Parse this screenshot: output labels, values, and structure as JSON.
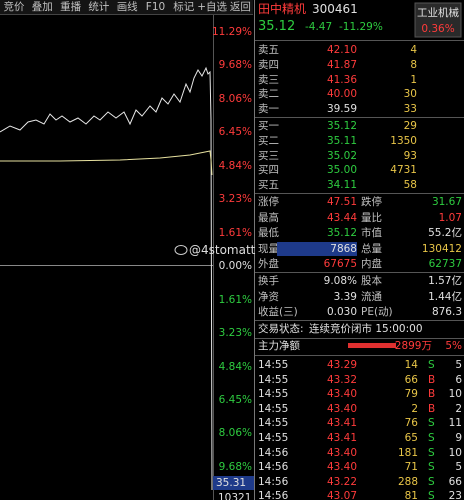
{
  "toolbar": [
    "竞价",
    "叠加",
    "重播",
    "统计",
    "画线",
    "F10",
    "标记",
    "+自选",
    "返回"
  ],
  "axis": {
    "labels": [
      {
        "text": "11.29%",
        "color": "#ff3b3b"
      },
      {
        "text": "9.68%",
        "color": "#ff3b3b"
      },
      {
        "text": "8.06%",
        "color": "#ff3b3b"
      },
      {
        "text": "6.45%",
        "color": "#ff3b3b"
      },
      {
        "text": "4.84%",
        "color": "#ff3b3b"
      },
      {
        "text": "3.23%",
        "color": "#ff3b3b"
      },
      {
        "text": "1.61%",
        "color": "#ff3b3b"
      },
      {
        "text": "0.00%",
        "color": "#e0e0e0"
      },
      {
        "text": "1.61%",
        "color": "#2ecc40"
      },
      {
        "text": "3.23%",
        "color": "#2ecc40"
      },
      {
        "text": "4.84%",
        "color": "#2ecc40"
      },
      {
        "text": "6.45%",
        "color": "#2ecc40"
      },
      {
        "text": "8.06%",
        "color": "#2ecc40"
      },
      {
        "text": "9.68%",
        "color": "#2ecc40"
      }
    ],
    "current": "35.31",
    "bottom": "10321"
  },
  "watermark": "@4stomatt",
  "quote": {
    "name": "田中精机",
    "code": "300461",
    "price": "35.12",
    "change": "-4.47",
    "pct": "-11.29%",
    "sector": "工业机械",
    "sector_pct": "0.36%"
  },
  "asks": [
    [
      "卖五",
      "42.10",
      "4"
    ],
    [
      "卖四",
      "41.87",
      "8"
    ],
    [
      "卖三",
      "41.36",
      "1"
    ],
    [
      "卖二",
      "40.00",
      "30"
    ],
    [
      "卖一",
      "39.59",
      "33"
    ]
  ],
  "bids": [
    [
      "买一",
      "35.12",
      "29"
    ],
    [
      "买二",
      "35.11",
      "1350"
    ],
    [
      "买三",
      "35.02",
      "93"
    ],
    [
      "买四",
      "35.00",
      "4731"
    ],
    [
      "买五",
      "34.11",
      "58"
    ]
  ],
  "stats": [
    [
      "涨停",
      "47.51",
      "跌停",
      "31.67"
    ],
    [
      "最高",
      "43.44",
      "量比",
      "1.07"
    ],
    [
      "最低",
      "35.12",
      "市值",
      "55.2亿"
    ],
    [
      "现量",
      "7868",
      "总量",
      "130412"
    ],
    [
      "外盘",
      "67675",
      "内盘",
      "62737"
    ],
    [
      "换手",
      "9.08%",
      "股本",
      "1.57亿"
    ],
    [
      "净资",
      "3.39",
      "流通",
      "1.44亿"
    ],
    [
      "收益(三)",
      "0.030",
      "PE(动)",
      "876.3"
    ]
  ],
  "status": {
    "label": "交易状态:",
    "value": "连续竞价闭市 15:00:00"
  },
  "flow": {
    "label": "主力净额",
    "value": "2899万",
    "pct": "5%"
  },
  "trades": [
    [
      "14:55",
      "43.29",
      "14",
      "S",
      "5"
    ],
    [
      "14:55",
      "43.32",
      "66",
      "B",
      "6"
    ],
    [
      "14:55",
      "43.40",
      "79",
      "B",
      "10"
    ],
    [
      "14:55",
      "43.40",
      "2",
      "B",
      "2"
    ],
    [
      "14:55",
      "43.41",
      "76",
      "S",
      "11"
    ],
    [
      "14:55",
      "43.41",
      "65",
      "S",
      "9"
    ],
    [
      "14:56",
      "43.40",
      "181",
      "S",
      "10"
    ],
    [
      "14:56",
      "43.40",
      "71",
      "S",
      "5"
    ],
    [
      "14:56",
      "43.22",
      "288",
      "S",
      "66"
    ],
    [
      "14:56",
      "43.07",
      "81",
      "S",
      "23"
    ]
  ]
}
